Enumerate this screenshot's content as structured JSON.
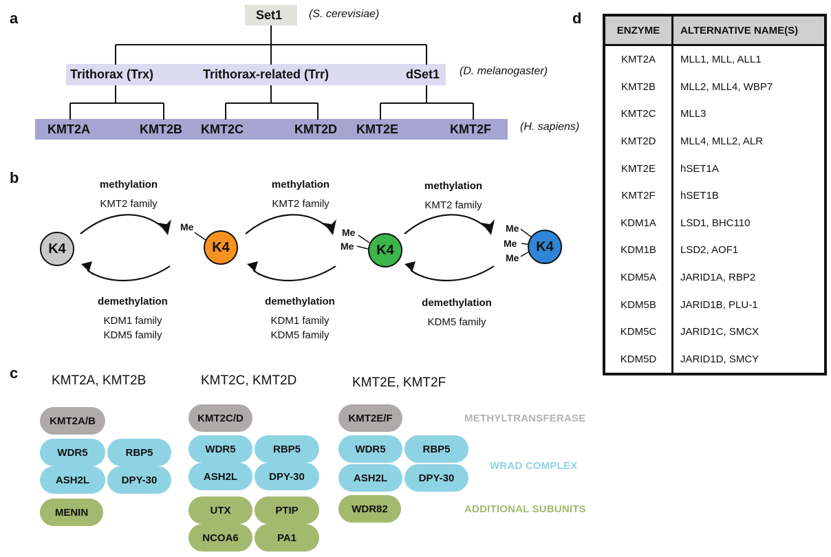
{
  "panels": {
    "a": "a",
    "b": "b",
    "c": "c",
    "d": "d"
  },
  "tree": {
    "root": "Set1",
    "root_species": "(S. cerevisiae)",
    "mid": [
      "Trithorax (Trx)",
      "Trithorax-related (Trr)",
      "dSet1"
    ],
    "mid_species": "(D. melanogaster)",
    "leaves": [
      "KMT2A",
      "KMT2B",
      "KMT2C",
      "KMT2D",
      "KMT2E",
      "KMT2F"
    ],
    "leaf_species": "(H. sapiens)"
  },
  "cycle": {
    "states": [
      "K4",
      "K4",
      "K4",
      "K4"
    ],
    "me": "Me",
    "forward": [
      {
        "title": "methylation",
        "line1": "KMT2 family"
      },
      {
        "title": "methylation",
        "line1": "KMT2 family"
      },
      {
        "title": "methylation",
        "line1": "KMT2 family"
      }
    ],
    "reverse": [
      {
        "title": "demethylation",
        "line1": "KDM1 family",
        "line2": "KDM5 family"
      },
      {
        "title": "demethylation",
        "line1": "KDM1 family",
        "line2": "KDM5 family"
      },
      {
        "title": "demethylation",
        "line1": "KDM5 family",
        "line2": ""
      }
    ],
    "colors": {
      "k4_0": "#c8c8c8",
      "k4_1": "#f7921e",
      "k4_2": "#3cb54a",
      "k4_3": "#2f86d6"
    }
  },
  "complexes": {
    "groups": [
      {
        "title": "KMT2A, KMT2B",
        "mt": "KMT2A/B",
        "wrad": [
          "WDR5",
          "RBP5",
          "ASH2L",
          "DPY-30"
        ],
        "extra": [
          "MENIN"
        ]
      },
      {
        "title": "KMT2C, KMT2D",
        "mt": "KMT2C/D",
        "wrad": [
          "WDR5",
          "RBP5",
          "ASH2L",
          "DPY-30"
        ],
        "extra": [
          "UTX",
          "PTIP",
          "NCOA6",
          "PA1"
        ]
      },
      {
        "title": "KMT2E, KMT2F",
        "mt": "KMT2E/F",
        "wrad": [
          "WDR5",
          "RBP5",
          "ASH2L",
          "DPY-30"
        ],
        "extra": [
          "WDR82"
        ]
      }
    ],
    "legend": {
      "mt": "METHYLTRANSFERASE",
      "wrad": "WRAD COMPLEX",
      "extra": "ADDITIONAL SUBUNITS"
    },
    "colors": {
      "grey": "#aeaaaa",
      "blue": "#8ed3e3",
      "green": "#a2b96e"
    }
  },
  "table": {
    "headers": [
      "ENZYME",
      "ALTERNATIVE NAME(S)"
    ],
    "rows": [
      [
        "KMT2A",
        "MLL1, MLL, ALL1"
      ],
      [
        "KMT2B",
        "MLL2, MLL4, WBP7"
      ],
      [
        "KMT2C",
        "MLL3"
      ],
      [
        "KMT2D",
        "MLL4, MLL2, ALR"
      ],
      [
        "KMT2E",
        "hSET1A"
      ],
      [
        "KMT2F",
        "hSET1B"
      ],
      [
        "KDM1A",
        "LSD1, BHC110"
      ],
      [
        "KDM1B",
        "LSD2, AOF1"
      ],
      [
        "KDM5A",
        "JARID1A, RBP2"
      ],
      [
        "KDM5B",
        "JARID1B, PLU-1"
      ],
      [
        "KDM5C",
        "JARID1C, SMCX"
      ],
      [
        "KDM5D",
        "JARID1D, SMCY"
      ]
    ]
  }
}
